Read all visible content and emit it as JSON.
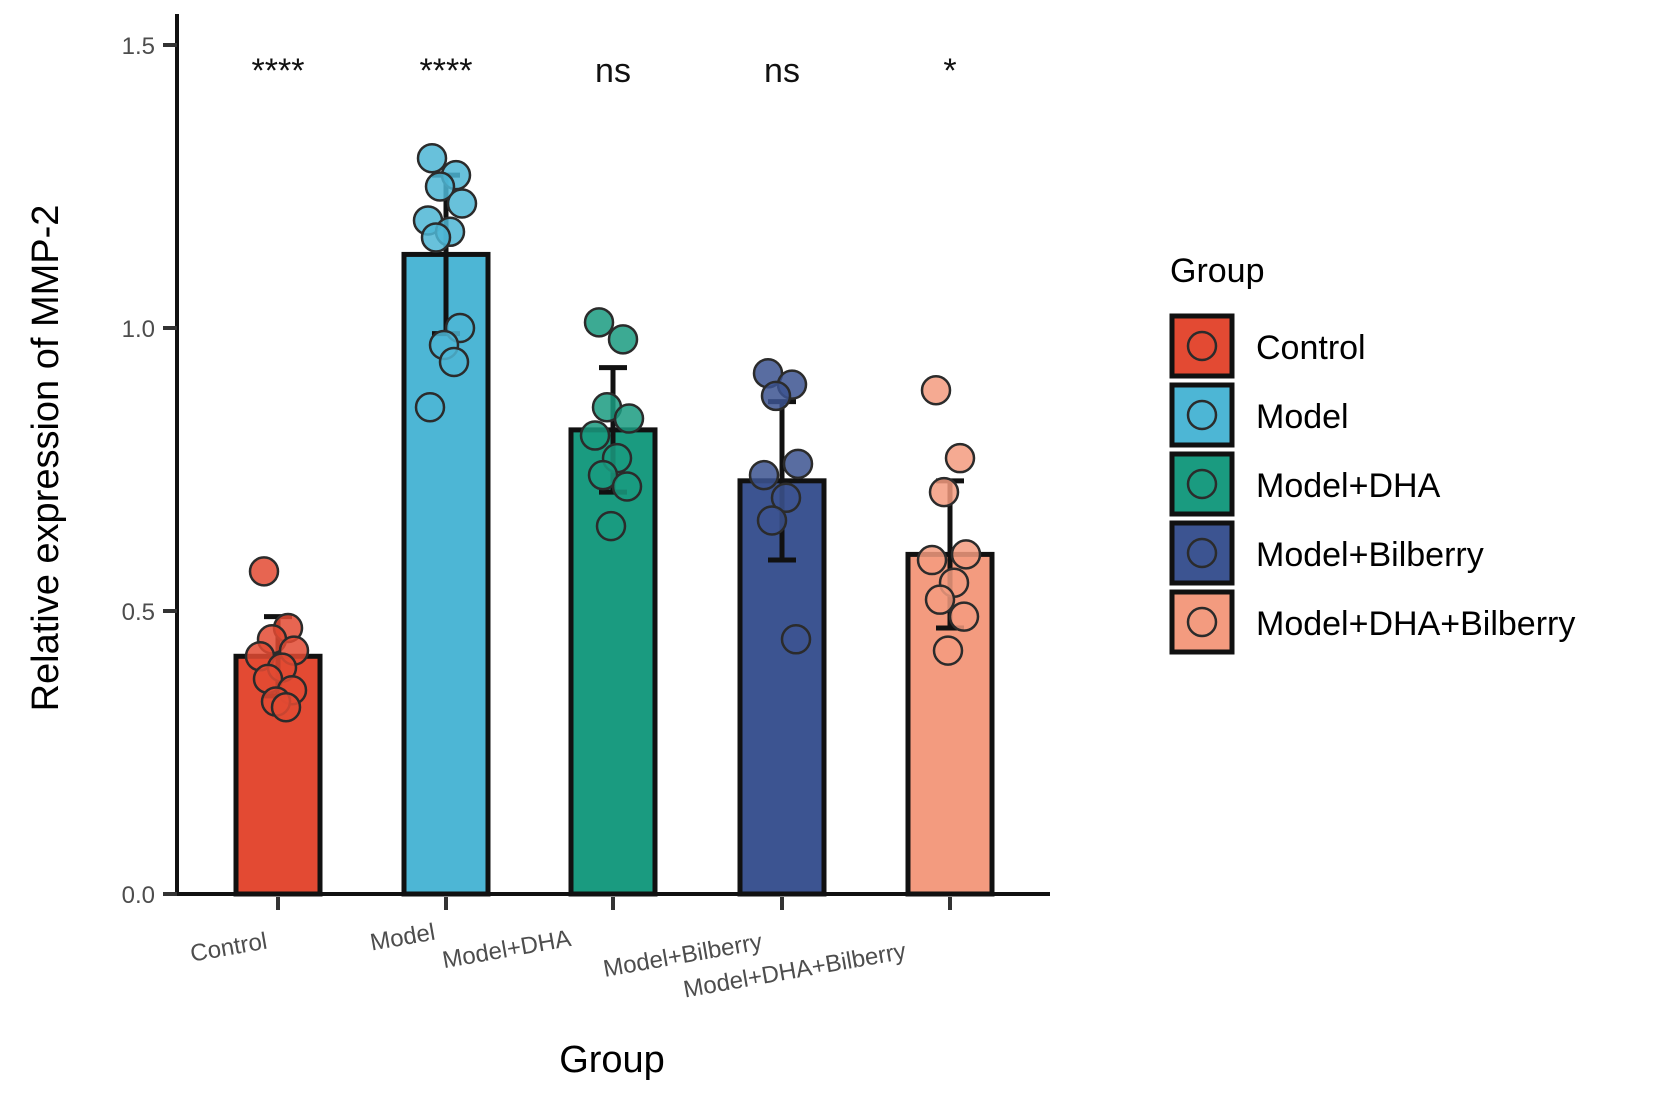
{
  "chart_data": {
    "type": "bar",
    "xlabel": "Group",
    "ylabel": "Relative expression of MMP-2",
    "ylim": [
      0,
      1.5
    ],
    "yticks": [
      "0.0",
      "0.5",
      "1.0",
      "1.5"
    ],
    "ytick_values": [
      0.0,
      0.5,
      1.0,
      1.5
    ],
    "categories": [
      "Control",
      "Model",
      "Model+DHA",
      "Model+Bilberry",
      "Model+DHA+Bilberry"
    ],
    "values": [
      0.42,
      1.13,
      0.82,
      0.73,
      0.6
    ],
    "error": [
      0.07,
      0.14,
      0.11,
      0.14,
      0.13
    ],
    "points": [
      [
        0.57,
        0.47,
        0.45,
        0.43,
        0.42,
        0.4,
        0.38,
        0.36,
        0.34,
        0.33
      ],
      [
        1.3,
        1.27,
        1.25,
        1.22,
        1.19,
        1.17,
        1.16,
        1.0,
        0.97,
        0.94,
        0.86
      ],
      [
        1.01,
        0.98,
        0.86,
        0.84,
        0.81,
        0.77,
        0.74,
        0.72,
        0.65
      ],
      [
        0.92,
        0.9,
        0.88,
        0.76,
        0.74,
        0.7,
        0.66,
        0.45
      ],
      [
        0.89,
        0.77,
        0.71,
        0.6,
        0.59,
        0.55,
        0.52,
        0.49,
        0.43
      ]
    ],
    "significance": [
      "****",
      "****",
      "ns",
      "ns",
      "*"
    ],
    "colors": [
      "#e34a33",
      "#4db6d5",
      "#1a9b80",
      "#3c5491",
      "#f39b7f"
    ],
    "legend": {
      "title": "Group",
      "position": "right",
      "entries": [
        "Control",
        "Model",
        "Model+DHA",
        "Model+Bilberry",
        "Model+DHA+Bilberry"
      ]
    },
    "grid": false
  }
}
